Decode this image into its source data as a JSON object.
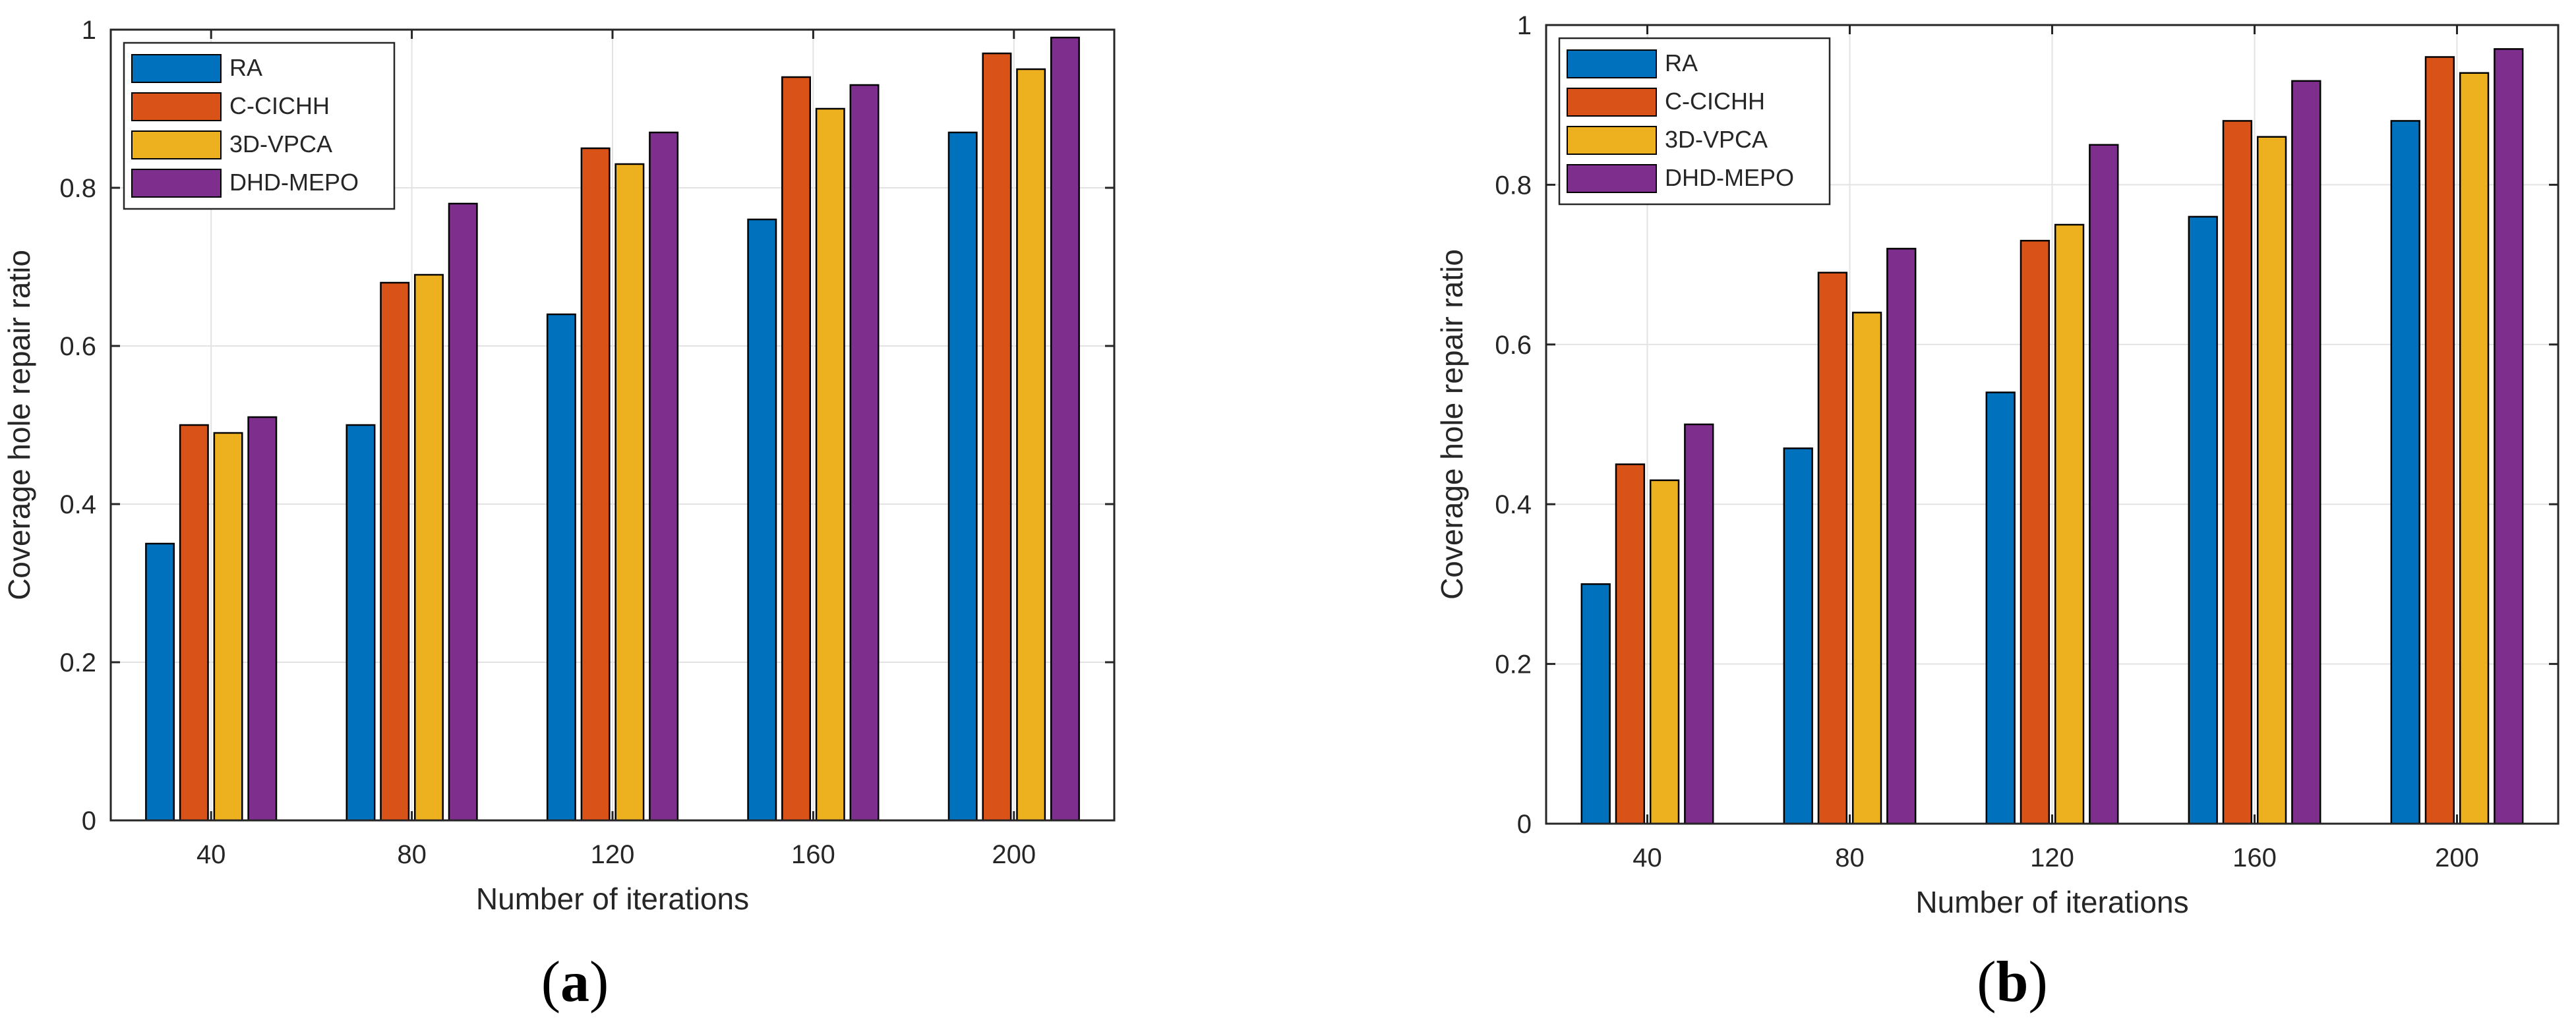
{
  "figure": {
    "panels": [
      {
        "label_open": "(",
        "label_letter": "a",
        "label_close": ")"
      },
      {
        "label_open": "(",
        "label_letter": "b",
        "label_close": ")"
      }
    ]
  },
  "chart_data": [
    {
      "type": "bar",
      "panel": "a",
      "title": "",
      "xlabel": "Number of iterations",
      "ylabel": "Coverage hole repair ratio",
      "categories": [
        "40",
        "80",
        "120",
        "160",
        "200"
      ],
      "ylim": [
        0,
        1
      ],
      "yticks": [
        0,
        0.2,
        0.4,
        0.6,
        0.8,
        1
      ],
      "ytick_labels": [
        "0",
        "0.2",
        "0.4",
        "0.6",
        "0.8",
        "1"
      ],
      "grid": true,
      "legend_position": "top-left",
      "series": [
        {
          "name": "RA",
          "color": "#0072BD",
          "values": [
            0.35,
            0.5,
            0.64,
            0.76,
            0.87
          ]
        },
        {
          "name": "C-CICHH",
          "color": "#D95319",
          "values": [
            0.5,
            0.68,
            0.85,
            0.94,
            0.97
          ]
        },
        {
          "name": "3D-VPCA",
          "color": "#EDB120",
          "values": [
            0.49,
            0.69,
            0.83,
            0.9,
            0.95
          ]
        },
        {
          "name": "DHD-MEPO",
          "color": "#7E2F8E",
          "values": [
            0.51,
            0.78,
            0.87,
            0.93,
            0.99
          ]
        }
      ]
    },
    {
      "type": "bar",
      "panel": "b",
      "title": "",
      "xlabel": "Number of iterations",
      "ylabel": "Coverage hole repair ratio",
      "categories": [
        "40",
        "80",
        "120",
        "160",
        "200"
      ],
      "ylim": [
        0,
        1
      ],
      "yticks": [
        0,
        0.2,
        0.4,
        0.6,
        0.8,
        1
      ],
      "ytick_labels": [
        "0",
        "0.2",
        "0.4",
        "0.6",
        "0.8",
        "1"
      ],
      "grid": true,
      "legend_position": "top-left",
      "series": [
        {
          "name": "RA",
          "color": "#0072BD",
          "values": [
            0.3,
            0.47,
            0.54,
            0.76,
            0.88
          ]
        },
        {
          "name": "C-CICHH",
          "color": "#D95319",
          "values": [
            0.45,
            0.69,
            0.73,
            0.88,
            0.96
          ]
        },
        {
          "name": "3D-VPCA",
          "color": "#EDB120",
          "values": [
            0.43,
            0.64,
            0.75,
            0.86,
            0.94
          ]
        },
        {
          "name": "DHD-MEPO",
          "color": "#7E2F8E",
          "values": [
            0.5,
            0.72,
            0.85,
            0.93,
            0.97
          ]
        }
      ]
    }
  ]
}
